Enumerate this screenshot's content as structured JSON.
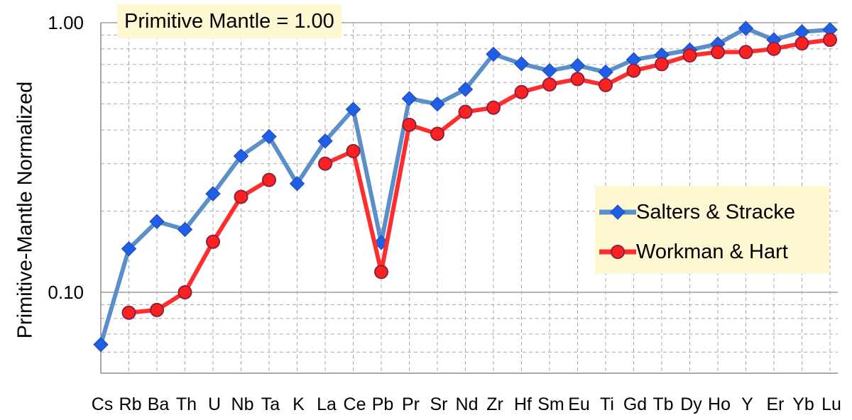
{
  "annotation": "Primitive Mantle = 1.00",
  "chart_data": {
    "type": "line",
    "title": "",
    "xlabel": "",
    "ylabel": "Primitive-Mantle Normalized",
    "yscale": "log",
    "ylim": [
      0.05,
      1.0
    ],
    "yticks": [
      "1.00",
      "0.10"
    ],
    "grid": true,
    "legend": "right",
    "categories": [
      "Cs",
      "Rb",
      "Ba",
      "Th",
      "U",
      "Nb",
      "Ta",
      "K",
      "La",
      "Ce",
      "Pb",
      "Pr",
      "Sr",
      "Nd",
      "Zr",
      "Hf",
      "Sm",
      "Eu",
      "Ti",
      "Gd",
      "Tb",
      "Dy",
      "Ho",
      "Y",
      "Er",
      "Yb",
      "Lu"
    ],
    "series": [
      {
        "name": "Salters & Stracke",
        "color": "#5b8fc9",
        "marker": "diamond",
        "values": [
          0.064,
          0.145,
          0.183,
          0.171,
          0.232,
          0.32,
          0.378,
          0.253,
          0.364,
          0.477,
          0.153,
          0.523,
          0.499,
          0.566,
          0.764,
          0.704,
          0.664,
          0.694,
          0.656,
          0.729,
          0.759,
          0.792,
          0.834,
          0.953,
          0.864,
          0.925,
          0.942
        ]
      },
      {
        "name": "Workman & Hart",
        "color": "#ff2d2d",
        "marker": "circle",
        "values": [
          null,
          0.084,
          0.086,
          0.1,
          0.154,
          0.226,
          0.261,
          null,
          0.3,
          0.334,
          0.119,
          0.418,
          0.387,
          0.467,
          0.484,
          0.553,
          0.59,
          0.618,
          0.587,
          0.664,
          0.702,
          0.756,
          0.778,
          0.778,
          0.8,
          0.838,
          0.864
        ]
      }
    ]
  }
}
